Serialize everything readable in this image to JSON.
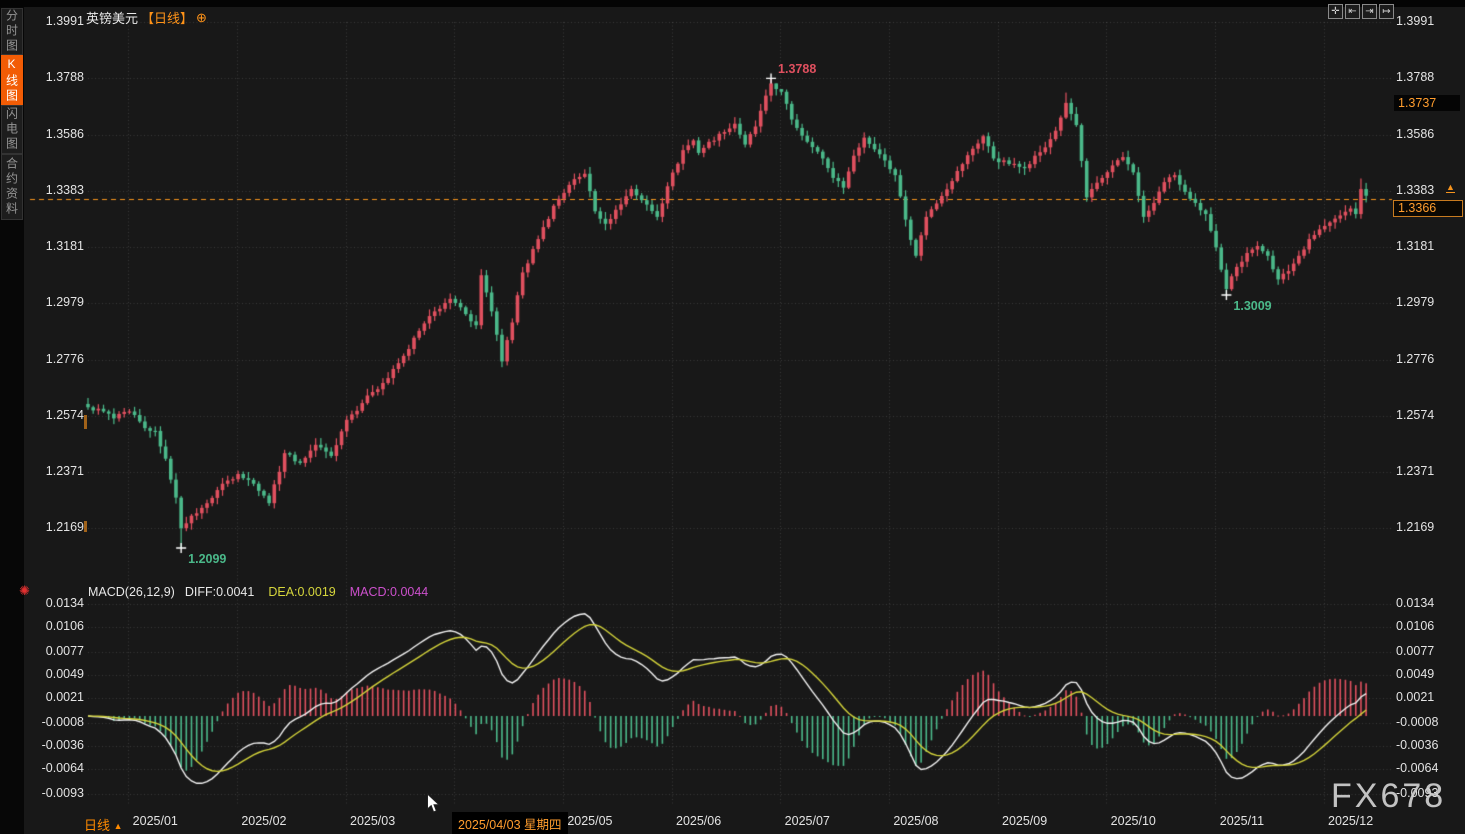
{
  "app": {
    "top_title": {
      "symbol": "英镑美元",
      "period": "【日线】",
      "settings_glyph": "⊕"
    },
    "toolbar": {
      "icons": [
        {
          "name": "pan-move",
          "glyph": "✛"
        },
        {
          "name": "zoom-axis-left",
          "glyph": "⇤"
        },
        {
          "name": "zoom-axis-right",
          "glyph": "⇥"
        },
        {
          "name": "jump-to-latest",
          "glyph": "↦"
        }
      ]
    },
    "sidebar": {
      "items": [
        {
          "label": "分时图",
          "active": false
        },
        {
          "label": "K线图",
          "active": true
        },
        {
          "label": "闪电图",
          "active": false
        },
        {
          "label": "合约资料",
          "active": false
        }
      ]
    },
    "indicator_icon_glyph": "✺",
    "bottom_bar": {
      "period_label": "日线",
      "period_arrow": "▲",
      "date_highlight": "2025/04/03 星期四"
    },
    "watermark": "FX678"
  },
  "colors": {
    "bg": "#181818",
    "accent_orange": "#ff9318",
    "tab_active": "#f25c05",
    "candle_up": "#e0505f",
    "candle_down": "#4bb98a",
    "diff_line": "#f2f2f2",
    "dea_line": "#d3d33a",
    "macd_value_text": "#cc50cc",
    "axis_text": "#e3e3e3",
    "current_price_line": "#f7941d",
    "grid": "rgba(255,255,255,0.15)"
  },
  "chart_data": {
    "type": "candlestick",
    "symbol": "英镑美元 (GBP/USD)",
    "timeframe": "日线 (daily)",
    "price_axis_ticks": [
      1.3991,
      1.3788,
      1.3586,
      1.3383,
      1.3181,
      1.2979,
      1.2776,
      1.2574,
      1.2371,
      1.2169
    ],
    "x_axis_labels": [
      "2025/01",
      "2025/02",
      "2025/03",
      "2025/04",
      "2025/05",
      "2025/06",
      "2025/07",
      "2025/08",
      "2025/09",
      "2025/10",
      "2025/11",
      "2025/12"
    ],
    "days_per_month": 21,
    "first_month_offset_days": 13,
    "candle_count": 248,
    "current_price": 1.3366,
    "close_waypoints": [
      [
        0,
        1.2605
      ],
      [
        3,
        1.259
      ],
      [
        5,
        1.2565
      ],
      [
        8,
        1.259
      ],
      [
        11,
        1.253
      ],
      [
        13,
        1.252
      ],
      [
        15,
        1.242
      ],
      [
        17,
        1.228
      ],
      [
        18,
        1.217
      ],
      [
        20,
        1.2215
      ],
      [
        23,
        1.226
      ],
      [
        26,
        1.233
      ],
      [
        29,
        1.2365
      ],
      [
        32,
        1.233
      ],
      [
        35,
        1.226
      ],
      [
        38,
        1.244
      ],
      [
        41,
        1.2405
      ],
      [
        44,
        1.247
      ],
      [
        47,
        1.243
      ],
      [
        50,
        1.256
      ],
      [
        53,
        1.262
      ],
      [
        55,
        1.266
      ],
      [
        58,
        1.271
      ],
      [
        61,
        1.279
      ],
      [
        64,
        1.288
      ],
      [
        67,
        1.295
      ],
      [
        70,
        1.2995
      ],
      [
        73,
        1.294
      ],
      [
        75,
        1.29
      ],
      [
        76,
        1.308
      ],
      [
        78,
        1.295
      ],
      [
        80,
        1.277
      ],
      [
        82,
        1.291
      ],
      [
        84,
        1.309
      ],
      [
        87,
        1.321
      ],
      [
        90,
        1.333
      ],
      [
        93,
        1.3405
      ],
      [
        96,
        1.3445
      ],
      [
        98,
        1.331
      ],
      [
        100,
        1.3265
      ],
      [
        103,
        1.3335
      ],
      [
        105,
        1.339
      ],
      [
        107,
        1.335
      ],
      [
        110,
        1.329
      ],
      [
        112,
        1.34
      ],
      [
        115,
        1.353
      ],
      [
        117,
        1.3565
      ],
      [
        118,
        1.352
      ],
      [
        120,
        1.356
      ],
      [
        123,
        1.3595
      ],
      [
        125,
        1.3625
      ],
      [
        127,
        1.355
      ],
      [
        129,
        1.3615
      ],
      [
        132,
        1.377
      ],
      [
        134,
        1.374
      ],
      [
        136,
        1.364
      ],
      [
        139,
        1.356
      ],
      [
        142,
        1.35
      ],
      [
        144,
        1.343
      ],
      [
        146,
        1.3395
      ],
      [
        148,
        1.351
      ],
      [
        150,
        1.3575
      ],
      [
        153,
        1.3515
      ],
      [
        156,
        1.344
      ],
      [
        158,
        1.328
      ],
      [
        160,
        1.315
      ],
      [
        162,
        1.329
      ],
      [
        165,
        1.3365
      ],
      [
        168,
        1.3455
      ],
      [
        171,
        1.3535
      ],
      [
        173,
        1.358
      ],
      [
        175,
        1.35
      ],
      [
        178,
        1.348
      ],
      [
        181,
        1.3465
      ],
      [
        183,
        1.351
      ],
      [
        185,
        1.354
      ],
      [
        187,
        1.36
      ],
      [
        189,
        1.37
      ],
      [
        191,
        1.362
      ],
      [
        193,
        1.336
      ],
      [
        196,
        1.343
      ],
      [
        198,
        1.3475
      ],
      [
        200,
        1.3505
      ],
      [
        202,
        1.345
      ],
      [
        204,
        1.329
      ],
      [
        206,
        1.334
      ],
      [
        208,
        1.3415
      ],
      [
        210,
        1.344
      ],
      [
        212,
        1.338
      ],
      [
        214,
        1.334
      ],
      [
        216,
        1.33
      ],
      [
        218,
        1.318
      ],
      [
        219,
        1.31
      ],
      [
        220,
        1.303
      ],
      [
        222,
        1.311
      ],
      [
        224,
        1.316
      ],
      [
        226,
        1.3185
      ],
      [
        228,
        1.315
      ],
      [
        230,
        1.3065
      ],
      [
        232,
        1.3095
      ],
      [
        234,
        1.315
      ],
      [
        236,
        1.321
      ],
      [
        238,
        1.3245
      ],
      [
        240,
        1.327
      ],
      [
        242,
        1.3295
      ],
      [
        244,
        1.332
      ],
      [
        245,
        1.33
      ],
      [
        246,
        1.339
      ],
      [
        247,
        1.3366
      ]
    ],
    "wick_overrides": [
      [
        18,
        "low",
        1.2099
      ],
      [
        132,
        "high",
        1.3788
      ],
      [
        189,
        "high",
        1.3737
      ],
      [
        220,
        "low",
        1.3009
      ],
      [
        246,
        "high",
        1.3428
      ]
    ],
    "annotations": [
      {
        "day": 132,
        "price": 1.3788,
        "label": "1.3788",
        "direction": "high"
      },
      {
        "day": 220,
        "price": 1.3009,
        "label": "1.3009",
        "direction": "low"
      },
      {
        "day": 18,
        "price": 1.2099,
        "label": "1.2099",
        "direction": "low"
      }
    ],
    "right_markers": {
      "high_box_label": "1.3737",
      "current_box_label": "1.3366",
      "arrow_tick_value": "1.3383"
    },
    "macd": {
      "title": "MACD(26,12,9)",
      "diff_label": "DIFF:0.0041",
      "dea_label": "DEA:0.0019",
      "macd_label": "MACD:0.0044",
      "diff": 0.0041,
      "dea": 0.0019,
      "macd": 0.0044,
      "params": [
        26,
        12,
        9
      ],
      "histogram_rule": "2*(DIFF-DEA)",
      "axis_ticks": [
        0.0134,
        0.0106,
        0.0077,
        0.0049,
        0.0021,
        -0.0008,
        -0.0036,
        -0.0064,
        -0.0093
      ]
    }
  }
}
